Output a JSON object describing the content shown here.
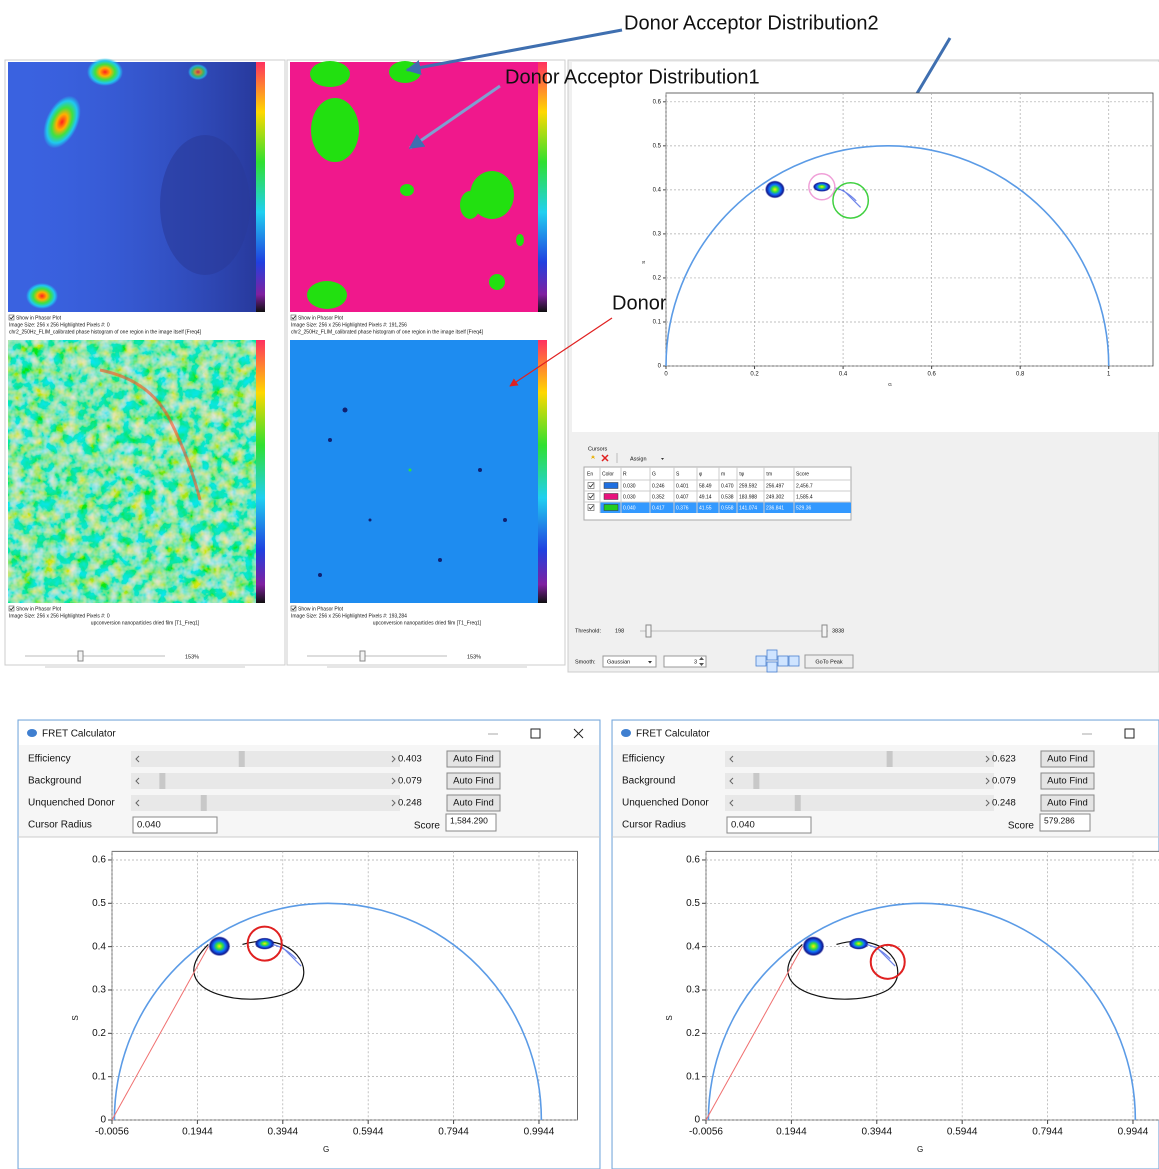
{
  "annotations": [
    "Donor Acceptor Distribution2",
    "Donor Acceptor Distribution1",
    "Donor Only"
  ],
  "image_panels": [
    {
      "images": [
        {
          "checkbox": "Show in Phasor Plot",
          "info": "Image Size:  256 x 256  Highlighted Pixels #:  0",
          "caption": "chr2_250Hz_FLIM_calibrated phase histogram of one region in the image itself [Freq4]"
        },
        {
          "checkbox": "Show in Phasor Plot",
          "info": "Image Size:  256 x 256  Highlighted Pixels #:  0",
          "caption": "upconversion nanoparticles dried film [T1_Freq1]"
        }
      ],
      "zoom": "153%"
    },
    {
      "images": [
        {
          "checkbox": "Show in Phasor Plot",
          "info": "Image Size:  256 x 256  Highlighted Pixels #:  191,256",
          "caption": "chr2_250Hz_FLIM_calibrated phase histogram of one region in the image itself [Freq4]"
        },
        {
          "checkbox": "Show in Phasor Plot",
          "info": "Image Size:  256 x 256  Highlighted Pixels #:  193,284",
          "caption": "upconversion nanoparticles dried film [T1_Freq1]"
        }
      ],
      "zoom": "153%"
    }
  ],
  "phasor_plot": {
    "xlim": [
      0,
      1.1
    ],
    "ylim": [
      0,
      0.62
    ],
    "xticks": [
      0,
      0.2,
      0.4,
      0.6,
      0.8,
      1
    ],
    "yticks": [
      0,
      0.1,
      0.2,
      0.3,
      0.4,
      0.5,
      0.6
    ],
    "xlabel": "G",
    "ylabel": "S",
    "grid": true
  },
  "cursors": {
    "title": "Cursors",
    "assign": "Assign",
    "columns": [
      "En",
      "Color",
      "R",
      "G",
      "S",
      "φ",
      "m",
      "τφ",
      "τm",
      "Score"
    ],
    "rows": [
      {
        "color": "#1f6fe0",
        "cells": [
          "0.030",
          "0.246",
          "0.401",
          "58.49",
          "0.470",
          "259.592",
          "256.497",
          "2,456.7"
        ]
      },
      {
        "color": "#e8147e",
        "cells": [
          "0.030",
          "0.352",
          "0.407",
          "49.14",
          "0.538",
          "183.988",
          "249.302",
          "1,585.4"
        ]
      },
      {
        "color": "#22cc22",
        "cells": [
          "0.040",
          "0.417",
          "0.376",
          "41.55",
          "0.558",
          "141.074",
          "236.841",
          "529.36"
        ]
      }
    ],
    "selected_row": 2
  },
  "threshold": {
    "label": "Threshold:",
    "min": "198",
    "max": "3838"
  },
  "smooth": {
    "label": "Smooth:",
    "method": "Gaussian",
    "size": "3",
    "button": "GoTo Peak"
  },
  "fret_windows": [
    {
      "title": "FRET Calculator",
      "sliders": [
        {
          "label": "Efficiency",
          "value": 0.403
        },
        {
          "label": "Background",
          "value": 0.079
        },
        {
          "label": "Unquenched Donor",
          "value": 0.248
        }
      ],
      "button": "Auto Find",
      "radius_label": "Cursor Radius",
      "radius": "0.040",
      "score_label": "Score",
      "score": "1,584.290",
      "plot": {
        "xlim": [
          -0.0056,
          1.0844
        ],
        "ylim": [
          0,
          0.62
        ],
        "xticks": [
          -0.0056,
          0.1944,
          0.3944,
          0.5944,
          0.7944,
          0.9944
        ],
        "yticks": [
          0,
          0.1,
          0.2,
          0.3,
          0.4,
          0.5,
          0.6
        ],
        "xlabel": "G",
        "ylabel": "S",
        "grid": true
      }
    },
    {
      "title": "FRET Calculator",
      "sliders": [
        {
          "label": "Efficiency",
          "value": 0.623
        },
        {
          "label": "Background",
          "value": 0.079
        },
        {
          "label": "Unquenched Donor",
          "value": 0.248
        }
      ],
      "button": "Auto Find",
      "radius_label": "Cursor Radius",
      "radius": "0.040",
      "score_label": "Score",
      "score": "579.286",
      "plot": {
        "xlim": [
          -0.0056,
          1.0844
        ],
        "ylim": [
          0,
          0.62
        ],
        "xticks": [
          -0.0056,
          0.1944,
          0.3944,
          0.5944,
          0.7944,
          0.9944
        ],
        "yticks": [
          0,
          0.1,
          0.2,
          0.3,
          0.4,
          0.5,
          0.6
        ],
        "xlabel": "G",
        "ylabel": "S",
        "grid": true
      }
    }
  ]
}
